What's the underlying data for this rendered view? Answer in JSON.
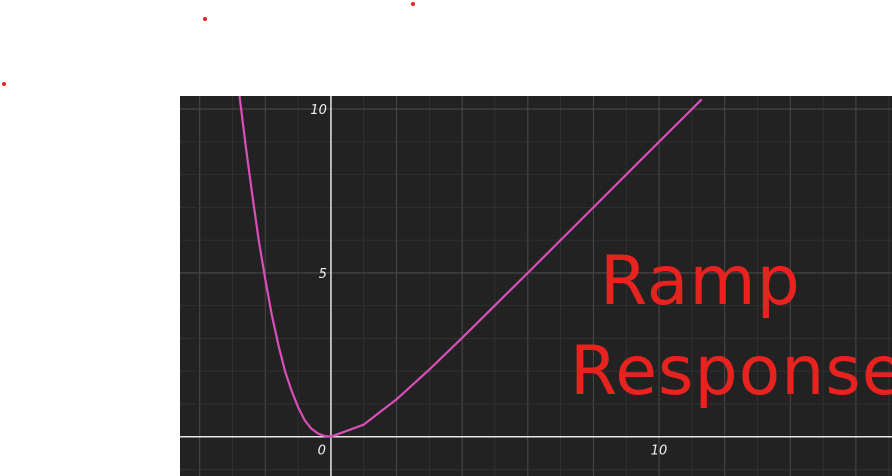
{
  "colors": {
    "background": "#222222",
    "grid_major": "#4a4a4a",
    "grid_minor": "#333333",
    "axis": "#e6e6e6",
    "curve": "#d94fb7",
    "annotation": "#e8231f",
    "tick_label": "#f2f2f2"
  },
  "chart_data": {
    "type": "line",
    "title": "",
    "xlabel": "",
    "ylabel": "",
    "xlim": [
      -4.6,
      17.1
    ],
    "ylim": [
      -1.2,
      10.4
    ],
    "grid": true,
    "x_ticks": [
      {
        "value": 0,
        "label": "0"
      },
      {
        "value": 10,
        "label": "10"
      }
    ],
    "y_ticks": [
      {
        "value": 5,
        "label": "5"
      },
      {
        "value": 10,
        "label": "10"
      }
    ],
    "series": [
      {
        "x": [
          -2.8,
          -2.6,
          -2.4,
          -2.2,
          -2.0,
          -1.8,
          -1.6,
          -1.4,
          -1.2,
          -1.0,
          -0.8,
          -0.6,
          -0.4,
          -0.2,
          0,
          1,
          2,
          3,
          4,
          5,
          6,
          7,
          8,
          9,
          10,
          11,
          11.3
        ],
        "y": [
          10.5,
          8.9,
          7.4,
          6.0,
          4.8,
          3.7,
          2.8,
          2.0,
          1.4,
          0.9,
          0.5,
          0.25,
          0.1,
          0.02,
          0,
          0.37,
          1.14,
          2.05,
          3.02,
          4.01,
          5.0,
          6.0,
          7.0,
          8.0,
          9.0,
          10.0,
          10.3
        ]
      }
    ],
    "annotations": [
      "Ramp",
      "Response"
    ]
  }
}
